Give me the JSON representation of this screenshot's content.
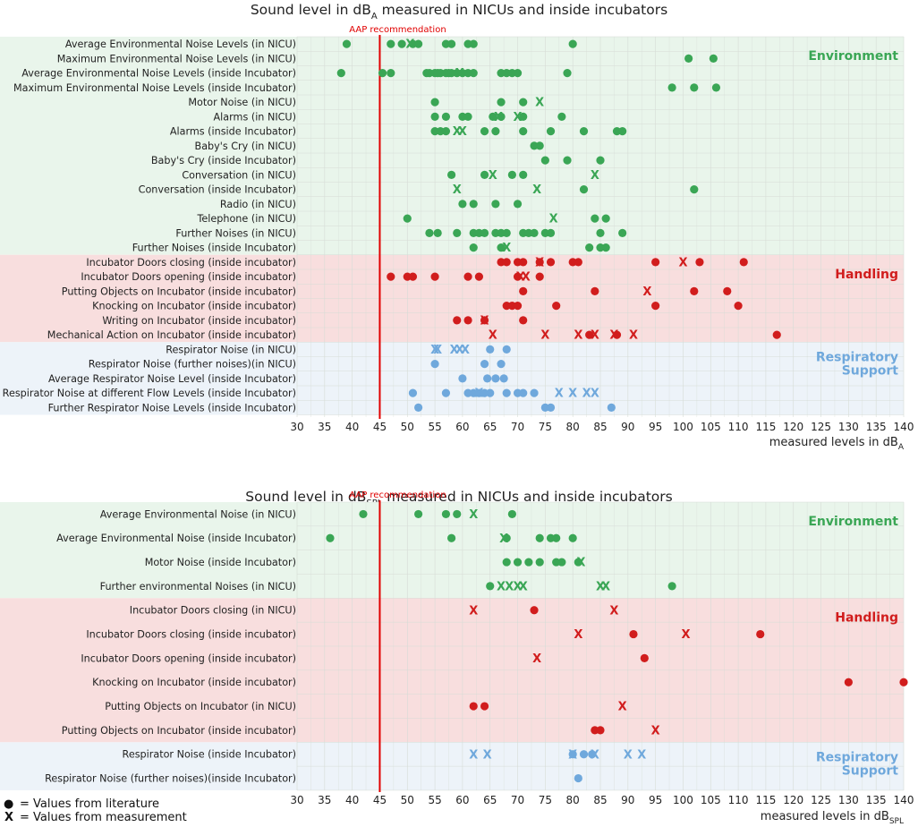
{
  "colors": {
    "environment": "#3aa655",
    "handling": "#d11d1d",
    "respiratory": "#6fa8dc",
    "environment_bg": "#e9f5eb",
    "handling_bg": "#f8dede",
    "respiratory_bg": "#edf3f9",
    "aap_line": "#e00000",
    "grid": "#d6dcd6"
  },
  "legend": {
    "dot_symbol": "●",
    "dot_text": "= Values from literature",
    "x_symbol": "X",
    "x_text": "= Values from measurement"
  },
  "chart_data": [
    {
      "type": "scatter",
      "title_main": "Sound level in dB",
      "title_sub": "A",
      "title_rest": " measured in NICUs and inside incubators",
      "xlabel_main": "measured levels in dB",
      "xlabel_sub": "A",
      "xlim": [
        30,
        140
      ],
      "xticks": [
        30,
        35,
        40,
        45,
        50,
        55,
        60,
        65,
        70,
        75,
        80,
        85,
        90,
        95,
        100,
        105,
        110,
        115,
        120,
        125,
        130,
        135,
        140
      ],
      "reference_line": {
        "value": 45,
        "label": "AAP recommendation"
      },
      "groups": [
        {
          "name": "Environment",
          "color_key": "environment",
          "rows": [
            {
              "label": "Average Environmental Noise Levels (in NICU)",
              "literature": [
                39,
                47,
                49,
                51,
                52,
                57,
                58,
                61,
                62,
                80
              ],
              "measurement": [
                50.5
              ]
            },
            {
              "label": "Maximum Environmental Noise Levels (in NICU)",
              "literature": [
                101,
                105.5
              ],
              "measurement": []
            },
            {
              "label": "Average Environmental Noise Levels (inside Incubator)",
              "literature": [
                38,
                45.5,
                47,
                53.5,
                54,
                55,
                55.5,
                56,
                57,
                57.5,
                58,
                59,
                60,
                61,
                62,
                67,
                68,
                69,
                70,
                79
              ],
              "measurement": [
                59.5
              ]
            },
            {
              "label": "Maximum Environmental Noise Levels (inside Incubator)",
              "literature": [
                98,
                102,
                106
              ],
              "measurement": []
            },
            {
              "label": "Motor Noise (in NICU)",
              "literature": [
                55,
                67,
                71
              ],
              "measurement": [
                74
              ]
            },
            {
              "label": "Alarms (in NICU)",
              "literature": [
                55,
                57,
                60,
                61,
                65.5,
                67,
                71,
                78
              ],
              "measurement": [
                66.5,
                70
              ]
            },
            {
              "label": "Alarms (inside Incubator)",
              "literature": [
                55,
                56,
                57,
                64,
                66,
                71,
                76,
                82,
                88,
                89
              ],
              "measurement": [
                59,
                60
              ]
            },
            {
              "label": "Baby's Cry (in NICU)",
              "literature": [
                73,
                74
              ],
              "measurement": []
            },
            {
              "label": "Baby's Cry (inside Incubator)",
              "literature": [
                75,
                79,
                85
              ],
              "measurement": []
            },
            {
              "label": "Conversation (in NICU)",
              "literature": [
                58,
                64,
                69,
                71
              ],
              "measurement": [
                65.5,
                84
              ]
            },
            {
              "label": "Conversation (inside Incubator)",
              "literature": [
                82,
                102
              ],
              "measurement": [
                59,
                73.5
              ]
            },
            {
              "label": "Radio (in NICU)",
              "literature": [
                60,
                62,
                66,
                70
              ],
              "measurement": []
            },
            {
              "label": "Telephone (in NICU)",
              "literature": [
                50,
                84,
                86
              ],
              "measurement": [
                76.5
              ]
            },
            {
              "label": "Further Noises (in NICU)",
              "literature": [
                54,
                55.5,
                59,
                62,
                63,
                64,
                66,
                67,
                68,
                71,
                72,
                73,
                75,
                76,
                85,
                89
              ],
              "measurement": []
            },
            {
              "label": "Further Noises (inside Incubator)",
              "literature": [
                62,
                67,
                83,
                85,
                86
              ],
              "measurement": [
                68
              ]
            }
          ]
        },
        {
          "name": "Handling",
          "color_key": "handling",
          "rows": [
            {
              "label": "Incubator Doors closing (inside incubator)",
              "literature": [
                67,
                68,
                70,
                71,
                74,
                76,
                80,
                81,
                95,
                103,
                111
              ],
              "measurement": [
                74,
                100
              ]
            },
            {
              "label": "Incubator Doors opening (inside incubator)",
              "literature": [
                47,
                50,
                51,
                55,
                61,
                63,
                70,
                74
              ],
              "measurement": [
                70.5,
                71.5
              ]
            },
            {
              "label": "Putting Objects on Incubator (inside incubator)",
              "literature": [
                71,
                84,
                102,
                108
              ],
              "measurement": [
                93.5
              ]
            },
            {
              "label": "Knocking on Incubator (inside incubator)",
              "literature": [
                68,
                69,
                70,
                77,
                95,
                110
              ],
              "measurement": []
            },
            {
              "label": "Writing on Incubator (inside incubator)",
              "literature": [
                59,
                61,
                64,
                71
              ],
              "measurement": [
                64
              ]
            },
            {
              "label": "Mechanical Action on Incubator (inside incubator)",
              "literature": [
                83,
                88,
                117
              ],
              "measurement": [
                65.5,
                75,
                81,
                84,
                87.5,
                91
              ]
            }
          ]
        },
        {
          "name": "Respiratory Support",
          "color_key": "respiratory",
          "rows": [
            {
              "label": "Respirator Noise (in NICU)",
              "literature": [
                65,
                68
              ],
              "measurement": [
                55,
                55.5,
                58.5,
                59.5,
                60.5
              ]
            },
            {
              "label": "Respirator Noise (further noises)(in NICU)",
              "literature": [
                55,
                64,
                67
              ],
              "measurement": []
            },
            {
              "label": "Average Respirator Noise Level (inside Incubator)",
              "literature": [
                60,
                64.5,
                66,
                67.5
              ],
              "measurement": []
            },
            {
              "label": "Respirator Noise at different Flow Levels (inside Incubator)",
              "literature": [
                51,
                57,
                61,
                62,
                63,
                64,
                65,
                68,
                70,
                71,
                73
              ],
              "measurement": [
                63,
                77.5,
                80,
                82.5,
                84
              ]
            },
            {
              "label": "Further Respirator Noise Levels (inside Incubator)",
              "literature": [
                52,
                75,
                76,
                87
              ],
              "measurement": []
            }
          ]
        }
      ]
    },
    {
      "type": "scatter",
      "title_main": "Sound level in dB",
      "title_sub": "SPL",
      "title_rest": " measured in NICUs and inside incubators",
      "xlabel_main": "measured levels in dB",
      "xlabel_sub": "SPL",
      "xlim": [
        30,
        140
      ],
      "xticks": [
        30,
        35,
        40,
        45,
        50,
        55,
        60,
        65,
        70,
        75,
        80,
        85,
        90,
        95,
        100,
        105,
        110,
        115,
        120,
        125,
        130,
        135,
        140
      ],
      "reference_line": {
        "value": 45,
        "label": "AAP recommendation"
      },
      "groups": [
        {
          "name": "Environment",
          "color_key": "environment",
          "rows": [
            {
              "label": "Average Environmental Noise (in NICU)",
              "literature": [
                42,
                52,
                57,
                59,
                69
              ],
              "measurement": [
                62
              ]
            },
            {
              "label": "Average Environmental Noise (inside Incubator)",
              "literature": [
                36,
                58,
                68,
                74,
                76,
                77,
                80
              ],
              "measurement": [
                67.5
              ]
            },
            {
              "label": "Motor Noise (inside Incubator)",
              "literature": [
                68,
                70,
                72,
                74,
                77,
                78,
                81
              ],
              "measurement": [
                81.5
              ]
            },
            {
              "label": "Further environmental Noises (in NICU)",
              "literature": [
                65,
                98
              ],
              "measurement": [
                67,
                68.5,
                70,
                71,
                85,
                86
              ]
            }
          ]
        },
        {
          "name": "Handling",
          "color_key": "handling",
          "rows": [
            {
              "label": "Incubator Doors closing (in NICU)",
              "literature": [
                73
              ],
              "measurement": [
                62,
                87.5
              ]
            },
            {
              "label": "Incubator Doors closing (inside incubator)",
              "literature": [
                91,
                114
              ],
              "measurement": [
                81,
                100.5
              ]
            },
            {
              "label": "Incubator Doors opening (inside incubator)",
              "literature": [
                93
              ],
              "measurement": [
                73.5
              ]
            },
            {
              "label": "Knocking on Incubator (inside incubator)",
              "literature": [
                130,
                140
              ],
              "measurement": []
            },
            {
              "label": "Putting Objects on Incubator (in NICU)",
              "literature": [
                62,
                64
              ],
              "measurement": [
                89
              ]
            },
            {
              "label": "Putting Objects on Incubator (inside incubator)",
              "literature": [
                84,
                85
              ],
              "measurement": [
                95
              ]
            }
          ]
        },
        {
          "name": "Respiratory Support",
          "color_key": "respiratory",
          "rows": [
            {
              "label": "Respirator Noise (inside Incubator)",
              "literature": [
                80,
                82,
                83.5
              ],
              "measurement": [
                62,
                64.5,
                80,
                84,
                90,
                92.5
              ]
            },
            {
              "label": "Respirator Noise (further noises)(inside Incubator)",
              "literature": [
                81
              ],
              "measurement": []
            }
          ]
        }
      ]
    }
  ]
}
